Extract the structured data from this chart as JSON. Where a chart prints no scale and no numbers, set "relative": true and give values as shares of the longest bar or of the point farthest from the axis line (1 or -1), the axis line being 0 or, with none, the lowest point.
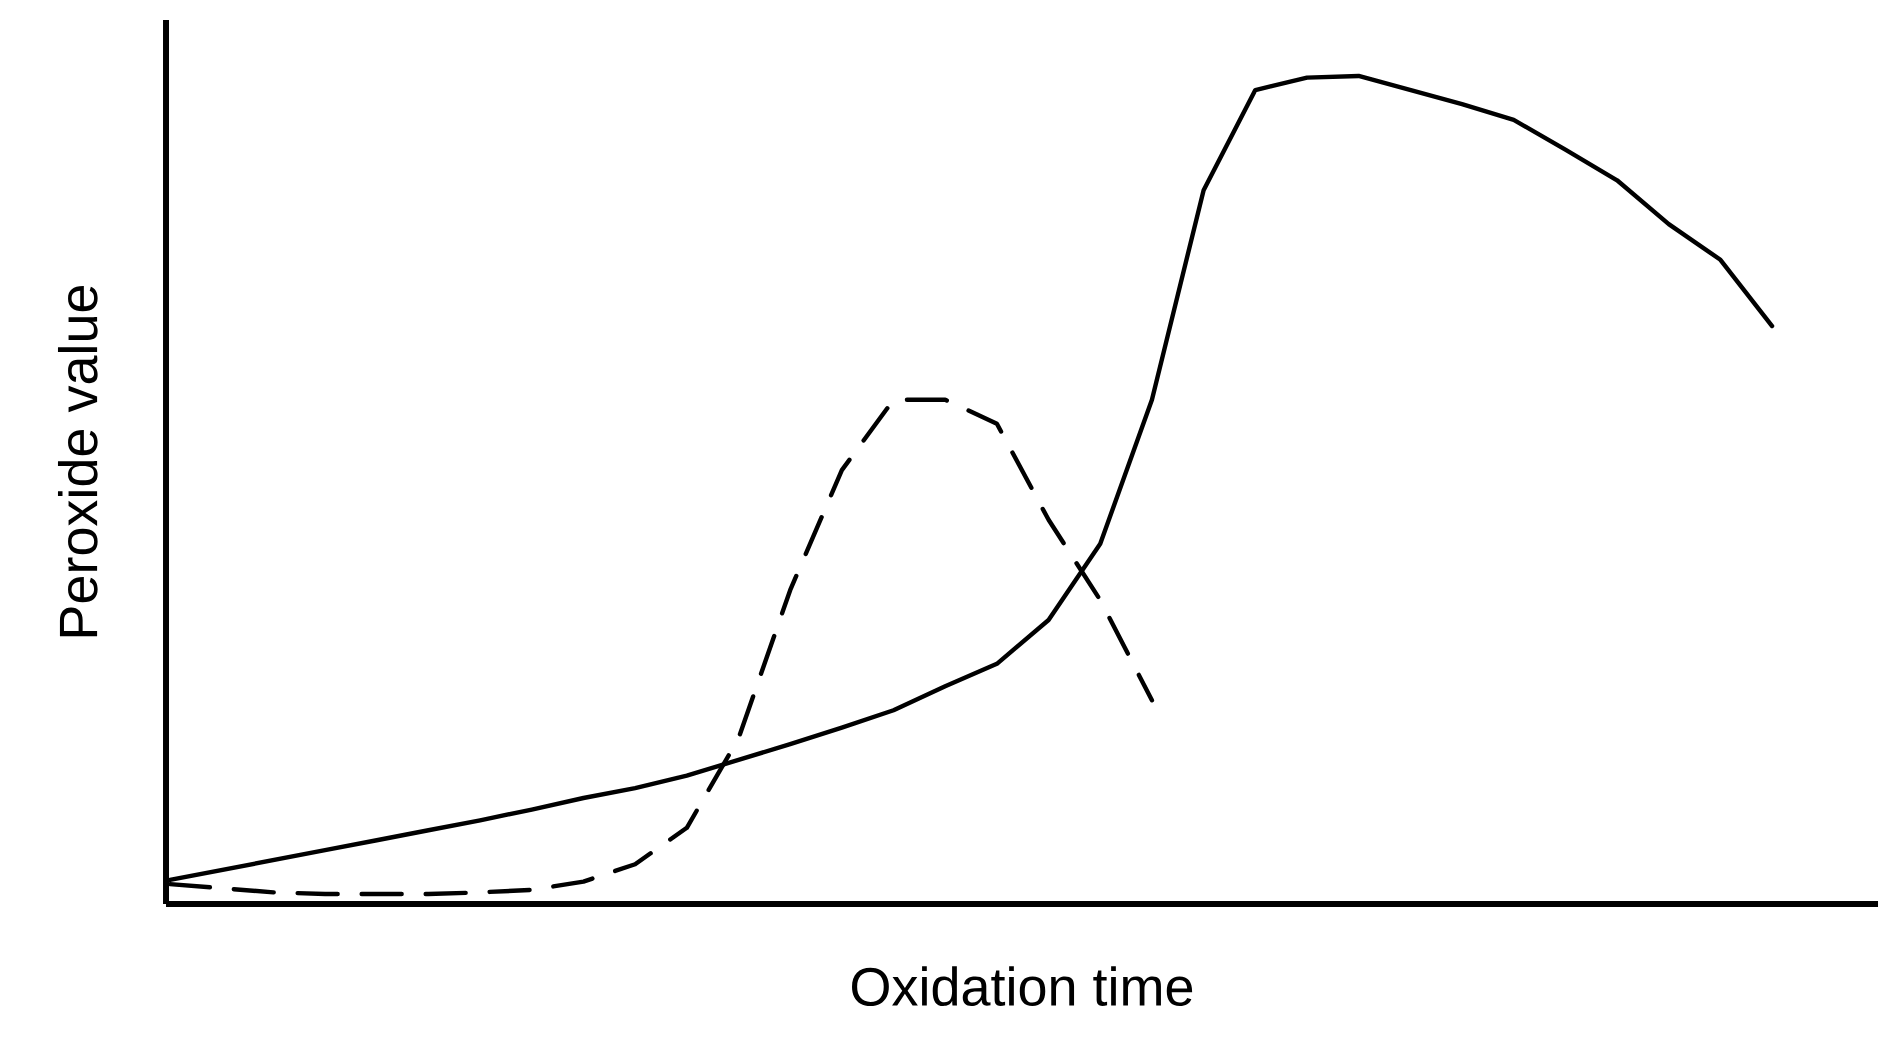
{
  "chart_data": {
    "type": "line",
    "xlabel": "Oxidation time",
    "ylabel": "Peroxide value",
    "relative": true,
    "marker": "none",
    "categories": [
      null,
      null,
      null,
      null,
      null,
      null,
      null,
      null,
      null,
      null,
      null,
      null,
      null,
      null,
      null,
      null,
      null,
      null,
      null,
      null,
      null,
      null,
      null,
      null,
      null,
      null,
      null,
      null,
      null,
      null,
      null,
      null
    ],
    "series": [
      {
        "color": "#000000",
        "line_style": "solid",
        "values": [
          0.029,
          0.041,
          0.053,
          0.065,
          0.077,
          0.089,
          0.101,
          0.114,
          0.128,
          0.14,
          0.155,
          0.174,
          0.193,
          0.213,
          0.234,
          0.263,
          0.29,
          0.343,
          0.435,
          0.609,
          0.862,
          0.983,
          0.998,
          1.0,
          0.983,
          0.966,
          0.947,
          0.911,
          0.874,
          0.821,
          0.778,
          0.698
        ]
      },
      {
        "color": "#000000",
        "line_style": "dashed",
        "values": [
          0.024,
          0.019,
          0.014,
          0.012,
          0.012,
          0.012,
          0.014,
          0.017,
          0.027,
          0.048,
          0.092,
          0.2,
          0.379,
          0.524,
          0.609,
          0.609,
          0.58,
          0.464,
          0.367,
          0.246,
          null,
          null,
          null,
          null,
          null,
          null,
          null,
          null,
          null,
          null,
          null,
          null
        ]
      }
    ]
  }
}
